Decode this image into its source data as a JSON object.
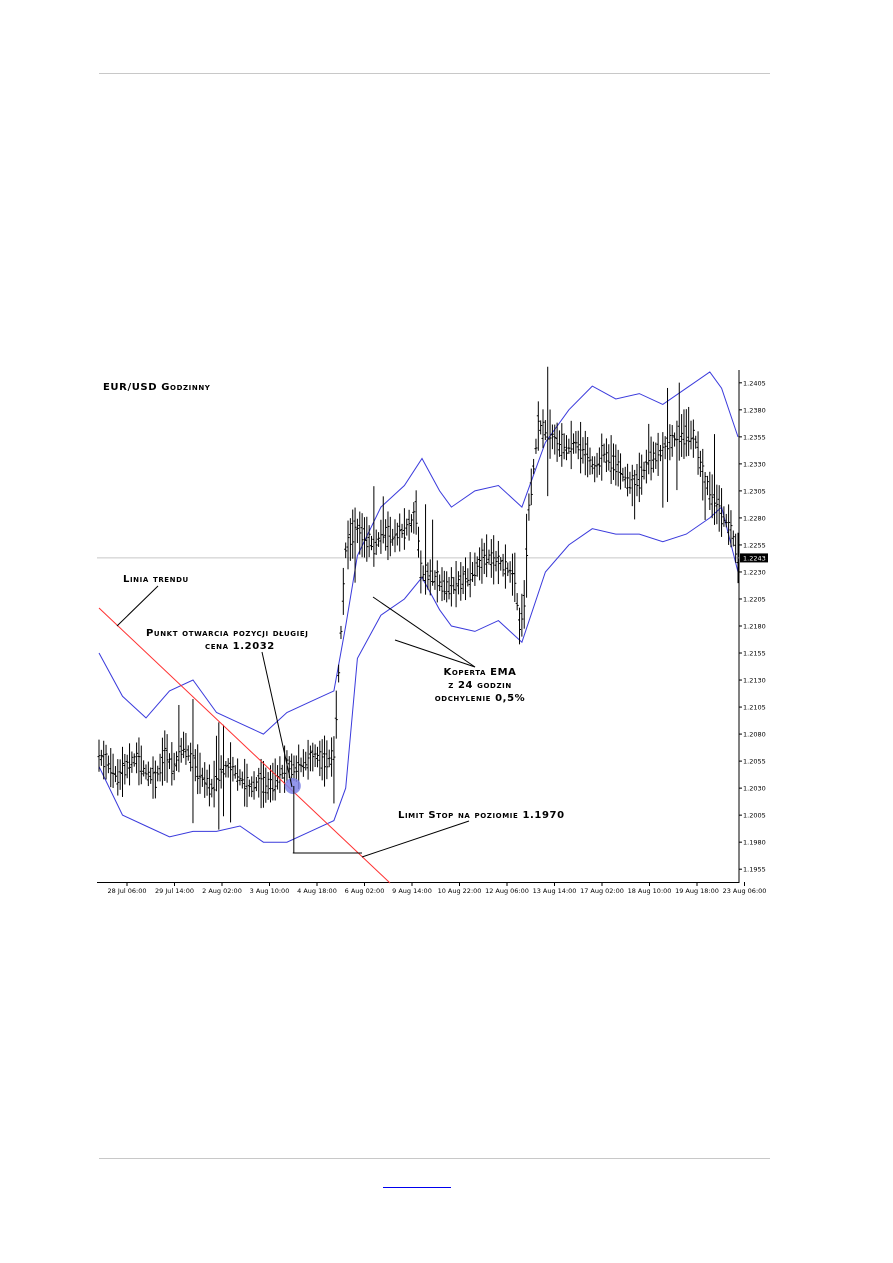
{
  "chart_data": {
    "type": "candlestick",
    "title": "EUR/USD Godzinny",
    "yaxis": {
      "ylim": [
        1.1945,
        1.2415
      ],
      "ticks": [
        "1.2405",
        "1.2380",
        "1.2355",
        "1.2330",
        "1.2305",
        "1.2280",
        "1.2255",
        "1.2230",
        "1.2205",
        "1.2180",
        "1.2155",
        "1.2130",
        "1.2105",
        "1.2080",
        "1.2055",
        "1.2030",
        "1.2005",
        "1.1980",
        "1.1955"
      ],
      "current_price": "1.2243"
    },
    "xaxis": {
      "ticks": [
        "28 Jul 06:00",
        "29 Jul 14:00",
        "2 Aug 02:00",
        "3 Aug 10:00",
        "4 Aug 18:00",
        "6 Aug 02:00",
        "9 Aug 14:00",
        "10 Aug 22:00",
        "12 Aug 06:00",
        "13 Aug 14:00",
        "17 Aug 02:00",
        "18 Aug 10:00",
        "19 Aug 18:00",
        "23 Aug 06:00"
      ]
    },
    "price_path": [
      [
        0,
        1.206
      ],
      [
        8,
        1.2052
      ],
      [
        16,
        1.204
      ],
      [
        24,
        1.205
      ],
      [
        32,
        1.2058
      ],
      [
        40,
        1.2045
      ],
      [
        48,
        1.2038
      ],
      [
        56,
        1.206
      ],
      [
        64,
        1.205
      ],
      [
        72,
        1.207
      ],
      [
        80,
        1.2055
      ],
      [
        88,
        1.204
      ],
      [
        96,
        1.203
      ],
      [
        104,
        1.2045
      ],
      [
        112,
        1.205
      ],
      [
        120,
        1.204
      ],
      [
        128,
        1.203
      ],
      [
        136,
        1.2035
      ],
      [
        144,
        1.2032
      ],
      [
        152,
        1.204
      ],
      [
        160,
        1.205
      ],
      [
        168,
        1.2048
      ],
      [
        176,
        1.2055
      ],
      [
        184,
        1.206
      ],
      [
        192,
        1.2055
      ],
      [
        200,
        1.206
      ],
      [
        210,
        1.225
      ],
      [
        218,
        1.227
      ],
      [
        226,
        1.2262
      ],
      [
        234,
        1.2255
      ],
      [
        242,
        1.2265
      ],
      [
        250,
        1.2262
      ],
      [
        258,
        1.2268
      ],
      [
        266,
        1.2275
      ],
      [
        270,
        1.2285
      ],
      [
        274,
        1.223
      ],
      [
        282,
        1.2225
      ],
      [
        290,
        1.222
      ],
      [
        298,
        1.2215
      ],
      [
        306,
        1.222
      ],
      [
        314,
        1.2225
      ],
      [
        322,
        1.2235
      ],
      [
        330,
        1.2245
      ],
      [
        338,
        1.224
      ],
      [
        346,
        1.2235
      ],
      [
        354,
        1.2225
      ],
      [
        358,
        1.218
      ],
      [
        362,
        1.22
      ],
      [
        366,
        1.229
      ],
      [
        374,
        1.2365
      ],
      [
        382,
        1.236
      ],
      [
        390,
        1.235
      ],
      [
        398,
        1.2345
      ],
      [
        406,
        1.235
      ],
      [
        414,
        1.234
      ],
      [
        422,
        1.2325
      ],
      [
        430,
        1.234
      ],
      [
        438,
        1.2332
      ],
      [
        446,
        1.232
      ],
      [
        454,
        1.231
      ],
      [
        462,
        1.232
      ],
      [
        470,
        1.2335
      ],
      [
        478,
        1.234
      ],
      [
        486,
        1.235
      ],
      [
        494,
        1.2355
      ],
      [
        502,
        1.236
      ],
      [
        508,
        1.235
      ],
      [
        514,
        1.232
      ],
      [
        522,
        1.23
      ],
      [
        530,
        1.2285
      ],
      [
        538,
        1.227
      ],
      [
        544,
        1.2243
      ]
    ],
    "ema_envelope": {
      "period_hours": 24,
      "deviation": "0.5%",
      "upper": [
        [
          0,
          1.2155
        ],
        [
          20,
          1.2115
        ],
        [
          40,
          1.2095
        ],
        [
          60,
          1.212
        ],
        [
          80,
          1.213
        ],
        [
          100,
          1.21
        ],
        [
          120,
          1.209
        ],
        [
          140,
          1.208
        ],
        [
          160,
          1.21
        ],
        [
          180,
          1.211
        ],
        [
          200,
          1.212
        ],
        [
          210,
          1.218
        ],
        [
          220,
          1.2245
        ],
        [
          240,
          1.229
        ],
        [
          260,
          1.231
        ],
        [
          275,
          1.2335
        ],
        [
          290,
          1.2305
        ],
        [
          300,
          1.229
        ],
        [
          320,
          1.2305
        ],
        [
          340,
          1.231
        ],
        [
          360,
          1.229
        ],
        [
          380,
          1.235
        ],
        [
          400,
          1.238
        ],
        [
          420,
          1.2402
        ],
        [
          440,
          1.239
        ],
        [
          460,
          1.2395
        ],
        [
          480,
          1.2385
        ],
        [
          500,
          1.24
        ],
        [
          520,
          1.2415
        ],
        [
          530,
          1.24
        ],
        [
          544,
          1.2355
        ]
      ],
      "lower": [
        [
          0,
          1.205
        ],
        [
          20,
          1.2005
        ],
        [
          40,
          1.1995
        ],
        [
          60,
          1.1985
        ],
        [
          80,
          1.199
        ],
        [
          100,
          1.199
        ],
        [
          120,
          1.1995
        ],
        [
          140,
          1.198
        ],
        [
          160,
          1.198
        ],
        [
          180,
          1.199
        ],
        [
          200,
          1.2
        ],
        [
          210,
          1.203
        ],
        [
          220,
          1.215
        ],
        [
          240,
          1.219
        ],
        [
          260,
          1.2205
        ],
        [
          275,
          1.2225
        ],
        [
          290,
          1.2195
        ],
        [
          300,
          1.218
        ],
        [
          320,
          1.2175
        ],
        [
          340,
          1.2185
        ],
        [
          360,
          1.2165
        ],
        [
          380,
          1.223
        ],
        [
          400,
          1.2255
        ],
        [
          420,
          1.227
        ],
        [
          440,
          1.2265
        ],
        [
          460,
          1.2265
        ],
        [
          480,
          1.2258
        ],
        [
          500,
          1.2265
        ],
        [
          520,
          1.228
        ],
        [
          530,
          1.229
        ],
        [
          544,
          1.223
        ]
      ]
    },
    "entry_point": {
      "x": 165,
      "price": 1.2032
    },
    "stop_level": 1.197,
    "annotations": {
      "trendline": "Linia trendu",
      "entry_line1": "Punkt otwarcia pozycji długiej",
      "entry_line2": "cena 1.2032",
      "ema_line1": "Koperta EMA",
      "ema_line2": "z 24 godzin",
      "ema_line3": "odchylenie 0,5%",
      "stop": "Limit Stop na poziomie 1.1970"
    },
    "colors": {
      "envelope": "#3a3adc",
      "trendline": "#ff3030",
      "entry_marker": "#7f84e8",
      "candles": "#000000",
      "current_price_line": "#c8c8c8"
    }
  }
}
